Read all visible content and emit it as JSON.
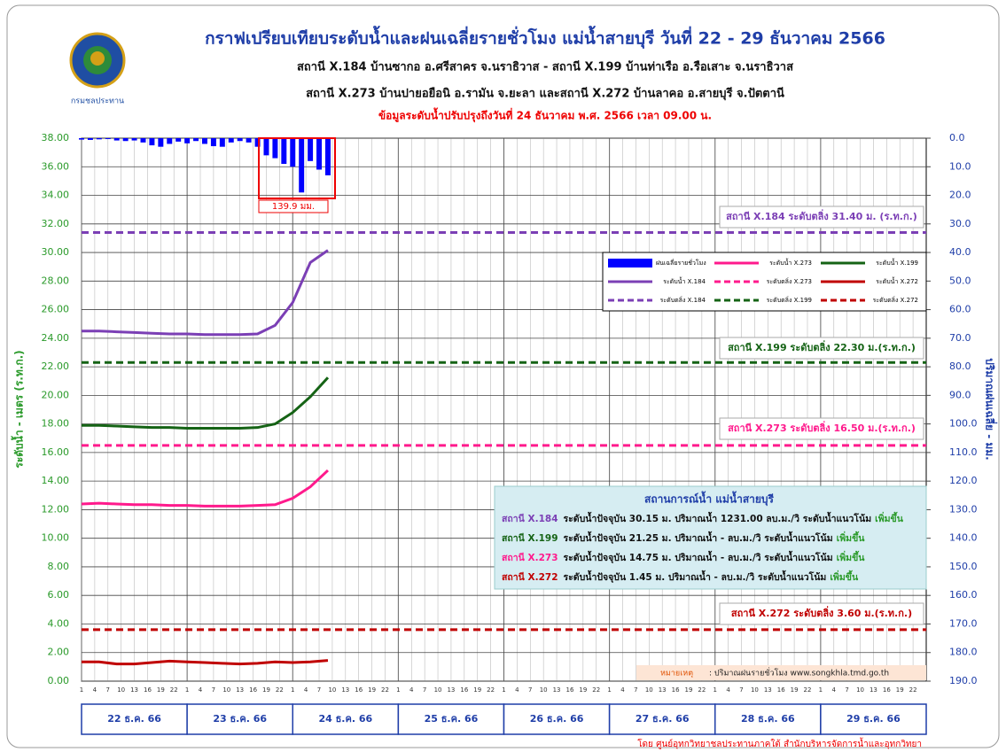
{
  "chart_data": {
    "type": "line",
    "title": "กราฟเปรียบเทียบระดับน้ำและฝนเฉลี่ยรายชั่วโมง แม่น้ำสายบุรี วันที่ 22 - 29 ธันวาคม 2566",
    "subtitle_lines": [
      "สถานี X.184 บ้านซากอ อ.ศรีสาคร จ.นราธิวาส - สถานี X.199 บ้านท่าเรือ อ.รือเสาะ จ.นราธิวาส",
      "สถานี X.273 บ้านปายอยือนิ อ.รามัน จ.ยะลา และสถานี X.272 บ้านลาคอ อ.สายบุรี จ.ปัตตานี"
    ],
    "update_note": "ข้อมูลระดับน้ำปรับปรุงถึงวันที่ 24 ธันวาคม พ.ศ. 2566  เวลา 09.00 น.",
    "logo_text": "กรมชลประทาน",
    "ylabel": "ระดับน้ำ  -  เมตร (ร.ท.ก.)",
    "y2label": "ปริมาณฝนเฉลี่ย - มม.",
    "xlim": [
      0,
      192
    ],
    "xticks": [
      {
        "value": 0,
        "label": "1"
      },
      {
        "value": 3,
        "label": "4"
      },
      {
        "value": 6,
        "label": "7"
      },
      {
        "value": 9,
        "label": "10"
      },
      {
        "value": 12,
        "label": "13"
      },
      {
        "value": 15,
        "label": "16"
      },
      {
        "value": 18,
        "label": "19"
      },
      {
        "value": 21,
        "label": "22"
      },
      {
        "value": 24,
        "label": "1"
      },
      {
        "value": 27,
        "label": "4"
      },
      {
        "value": 30,
        "label": "7"
      },
      {
        "value": 33,
        "label": "10"
      },
      {
        "value": 36,
        "label": "13"
      },
      {
        "value": 39,
        "label": "16"
      },
      {
        "value": 42,
        "label": "19"
      },
      {
        "value": 45,
        "label": "22"
      },
      {
        "value": 48,
        "label": "1"
      },
      {
        "value": 51,
        "label": "4"
      },
      {
        "value": 54,
        "label": "7"
      },
      {
        "value": 57,
        "label": "10"
      },
      {
        "value": 60,
        "label": "13"
      },
      {
        "value": 63,
        "label": "16"
      },
      {
        "value": 66,
        "label": "19"
      },
      {
        "value": 69,
        "label": "22"
      },
      {
        "value": 72,
        "label": "1"
      },
      {
        "value": 75,
        "label": "4"
      },
      {
        "value": 78,
        "label": "7"
      },
      {
        "value": 81,
        "label": "10"
      },
      {
        "value": 84,
        "label": "13"
      },
      {
        "value": 87,
        "label": "16"
      },
      {
        "value": 90,
        "label": "19"
      },
      {
        "value": 93,
        "label": "22"
      },
      {
        "value": 96,
        "label": "1"
      },
      {
        "value": 99,
        "label": "4"
      },
      {
        "value": 102,
        "label": "7"
      },
      {
        "value": 105,
        "label": "10"
      },
      {
        "value": 108,
        "label": "13"
      },
      {
        "value": 111,
        "label": "16"
      },
      {
        "value": 114,
        "label": "19"
      },
      {
        "value": 117,
        "label": "22"
      },
      {
        "value": 120,
        "label": "1"
      },
      {
        "value": 123,
        "label": "4"
      },
      {
        "value": 126,
        "label": "7"
      },
      {
        "value": 129,
        "label": "10"
      },
      {
        "value": 132,
        "label": "13"
      },
      {
        "value": 135,
        "label": "16"
      },
      {
        "value": 138,
        "label": "19"
      },
      {
        "value": 141,
        "label": "22"
      },
      {
        "value": 144,
        "label": "1"
      },
      {
        "value": 147,
        "label": "4"
      },
      {
        "value": 150,
        "label": "7"
      },
      {
        "value": 153,
        "label": "10"
      },
      {
        "value": 156,
        "label": "13"
      },
      {
        "value": 159,
        "label": "16"
      },
      {
        "value": 162,
        "label": "19"
      },
      {
        "value": 165,
        "label": "22"
      },
      {
        "value": 168,
        "label": "1"
      },
      {
        "value": 171,
        "label": "4"
      },
      {
        "value": 174,
        "label": "7"
      },
      {
        "value": 177,
        "label": "10"
      },
      {
        "value": 180,
        "label": "13"
      },
      {
        "value": 183,
        "label": "16"
      },
      {
        "value": 186,
        "label": "19"
      },
      {
        "value": 189,
        "label": "22"
      }
    ],
    "days": [
      "22 ธ.ค. 66",
      "23 ธ.ค. 66",
      "24 ธ.ค. 66",
      "25 ธ.ค. 66",
      "26 ธ.ค. 66",
      "27 ธ.ค. 66",
      "28 ธ.ค. 66",
      "29 ธ.ค. 66"
    ],
    "ylim": [
      0,
      38
    ],
    "yticks": [
      {
        "value": 38,
        "label": "38.00"
      },
      {
        "value": 36,
        "label": "36.00"
      },
      {
        "value": 34,
        "label": "34.00"
      },
      {
        "value": 32,
        "label": "32.00"
      },
      {
        "value": 30,
        "label": "30.00"
      },
      {
        "value": 28,
        "label": "28.00"
      },
      {
        "value": 26,
        "label": "26.00"
      },
      {
        "value": 24,
        "label": "24.00"
      },
      {
        "value": 22,
        "label": "22.00"
      },
      {
        "value": 20,
        "label": "20.00"
      },
      {
        "value": 18,
        "label": "18.00"
      },
      {
        "value": 16,
        "label": "16.00"
      },
      {
        "value": 14,
        "label": "14.00"
      },
      {
        "value": 12,
        "label": "12.00"
      },
      {
        "value": 10,
        "label": "10.00"
      },
      {
        "value": 8,
        "label": "8.00"
      },
      {
        "value": 6,
        "label": "6.00"
      },
      {
        "value": 4,
        "label": "4.00"
      },
      {
        "value": 2,
        "label": "2.00"
      },
      {
        "value": 0,
        "label": "0.00"
      }
    ],
    "y2lim": [
      0,
      190
    ],
    "y2ticks": [
      {
        "value": 0,
        "label": "0.0"
      },
      {
        "value": 10,
        "label": "10.0"
      },
      {
        "value": 20,
        "label": "20.0"
      },
      {
        "value": 30,
        "label": "30.0"
      },
      {
        "value": 40,
        "label": "40.0"
      },
      {
        "value": 50,
        "label": "50.0"
      },
      {
        "value": 60,
        "label": "60.0"
      },
      {
        "value": 70,
        "label": "70.0"
      },
      {
        "value": 80,
        "label": "80.0"
      },
      {
        "value": 90,
        "label": "90.0"
      },
      {
        "value": 100,
        "label": "100.0"
      },
      {
        "value": 110,
        "label": "110.0"
      },
      {
        "value": 120,
        "label": "120.0"
      },
      {
        "value": 130,
        "label": "130.0"
      },
      {
        "value": 140,
        "label": "140.0"
      },
      {
        "value": 150,
        "label": "150.0"
      },
      {
        "value": 160,
        "label": "160.0"
      },
      {
        "value": 170,
        "label": "170.0"
      },
      {
        "value": 180,
        "label": "180.0"
      },
      {
        "value": 190,
        "label": "190.0"
      }
    ],
    "y2_inverted": true,
    "grid": true,
    "x": [
      0,
      4,
      8,
      12,
      16,
      20,
      24,
      28,
      32,
      36,
      40,
      44,
      48,
      52,
      56
    ],
    "series": [
      {
        "name": "ระดับน้ำ X.184",
        "color": "#7b3fb5",
        "values": [
          24.5,
          24.5,
          24.45,
          24.4,
          24.35,
          24.3,
          24.3,
          24.25,
          24.25,
          24.25,
          24.3,
          24.9,
          26.5,
          29.3,
          30.15
        ]
      },
      {
        "name": "ระดับน้ำ X.199",
        "color": "#156315",
        "values": [
          17.9,
          17.9,
          17.85,
          17.8,
          17.75,
          17.75,
          17.7,
          17.7,
          17.7,
          17.7,
          17.75,
          18.0,
          18.8,
          19.9,
          21.25
        ]
      },
      {
        "name": "ระดับน้ำ X.273",
        "color": "#ff1a8c",
        "values": [
          12.4,
          12.45,
          12.4,
          12.35,
          12.35,
          12.3,
          12.3,
          12.25,
          12.25,
          12.25,
          12.3,
          12.35,
          12.8,
          13.6,
          14.75
        ]
      },
      {
        "name": "ระดับน้ำ X.272",
        "color": "#c00000",
        "values": [
          1.35,
          1.35,
          1.2,
          1.2,
          1.3,
          1.4,
          1.35,
          1.3,
          1.25,
          1.2,
          1.25,
          1.35,
          1.3,
          1.35,
          1.45
        ]
      }
    ],
    "rain": {
      "name": "ฝนเฉลี่ยรายชั่วโมง",
      "color": "#0000ff",
      "axis": "y2",
      "x": [
        0,
        2,
        4,
        6,
        8,
        10,
        12,
        14,
        16,
        18,
        20,
        22,
        24,
        26,
        28,
        30,
        32,
        34,
        36,
        38,
        40,
        42,
        44,
        46,
        48,
        50,
        52,
        54,
        56
      ],
      "values": [
        0.5,
        0.6,
        0.4,
        0.3,
        0.8,
        1.0,
        0.8,
        1.5,
        2.5,
        3.0,
        2.0,
        1.2,
        1.8,
        1.0,
        2.0,
        2.8,
        3.0,
        1.5,
        1.0,
        1.5,
        3,
        6,
        7,
        9,
        10,
        19,
        8,
        11,
        13
      ]
    },
    "rain_total_label": "139.9 มม.",
    "thresholds": [
      {
        "name": "ระดับตลิ่ง X.184",
        "value": 31.4,
        "color": "#7b3fb5",
        "label": "สถานี X.184 ระดับตลิ่ง 31.40 ม. (ร.ท.ก.)"
      },
      {
        "name": "ระดับตลิ่ง X.199",
        "value": 22.3,
        "color": "#156315",
        "label": "สถานี X.199 ระดับตลิ่ง 22.30 ม.(ร.ท.ก.)"
      },
      {
        "name": "ระดับตลิ่ง X.273",
        "value": 16.5,
        "color": "#ff1a8c",
        "label": "สถานี X.273 ระดับตลิ่ง 16.50 ม.(ร.ท.ก.)"
      },
      {
        "name": "ระดับตลิ่ง X.272",
        "value": 3.6,
        "color": "#c00000",
        "label": "สถานี X.272 ระดับตลิ่ง 3.60 ม.(ร.ท.ก.)"
      }
    ],
    "info": {
      "title": "สถานการณ์น้ำ แม่น้ำสายบุรี",
      "rows": [
        {
          "station": "สถานี X.184",
          "color": "#7b3fb5",
          "text": "ระดับน้ำปัจจุบัน  30.15 ม. ปริมาณน้ำ 1231.00 ลบ.ม./วิ  ระดับน้ำแนวโน้ม",
          "trend": "เพิ่มขึ้น"
        },
        {
          "station": "สถานี X.199",
          "color": "#156315",
          "text": "ระดับน้ำปัจจุบัน  21.25 ม. ปริมาณน้ำ - ลบ.ม./วิ  ระดับน้ำแนวโน้ม",
          "trend": "เพิ่มขึ้น"
        },
        {
          "station": "สถานี X.273",
          "color": "#ff1a8c",
          "text": "ระดับน้ำปัจจุบัน  14.75 ม. ปริมาณน้ำ - ลบ.ม./วิ  ระดับน้ำแนวโน้ม",
          "trend": "เพิ่มขึ้น"
        },
        {
          "station": "สถานี X.272",
          "color": "#c00000",
          "text": "ระดับน้ำปัจจุบัน  1.45 ม. ปริมาณน้ำ - ลบ.ม./วิ  ระดับน้ำแนวโน้ม",
          "trend": "เพิ่มขึ้น"
        }
      ]
    },
    "note_label": "หมายเหตุ",
    "note_text": ": ปริมาณฝนรายชั่วโมง www.songkhla.tmd.go.th",
    "footer": "โดย ศูนย์อุทกวิทยาชลประทานภาคใต้ สำนักบริหารจัดการน้ำและอุทกวิทยา"
  }
}
